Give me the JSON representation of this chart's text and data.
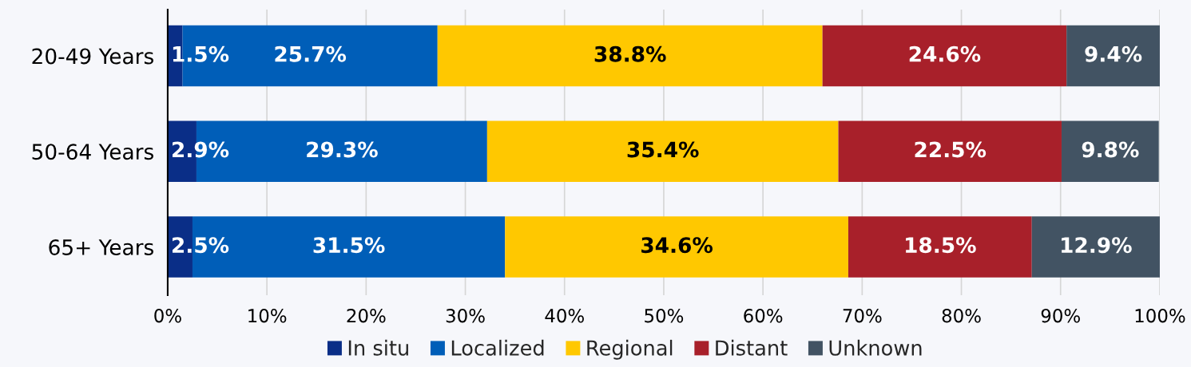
{
  "chart_data": {
    "type": "bar",
    "orientation": "horizontal",
    "stacked": true,
    "categories": [
      "20-49 Years",
      "50-64 Years",
      "65+ Years"
    ],
    "series": [
      {
        "name": "In situ",
        "color": "#0a2e87",
        "values": [
          1.5,
          2.9,
          2.5
        ],
        "value_labels": [
          "1.5%",
          "2.9%",
          "2.5%"
        ]
      },
      {
        "name": "Localized",
        "color": "#005eb8",
        "values": [
          25.7,
          29.3,
          31.5
        ],
        "value_labels": [
          "25.7%",
          "29.3%",
          "31.5%"
        ]
      },
      {
        "name": "Regional",
        "color": "#ffc800",
        "values": [
          38.8,
          35.4,
          34.6
        ],
        "value_labels": [
          "38.8%",
          "35.4%",
          "34.6%"
        ]
      },
      {
        "name": "Distant",
        "color": "#a8202a",
        "values": [
          24.6,
          22.5,
          18.5
        ],
        "value_labels": [
          "24.6%",
          "22.5%",
          "18.5%"
        ]
      },
      {
        "name": "Unknown",
        "color": "#425363",
        "values": [
          9.4,
          9.8,
          12.9
        ],
        "value_labels": [
          "9.4%",
          "9.8%",
          "12.9%"
        ]
      }
    ],
    "xlim": [
      0,
      100
    ],
    "xticks": [
      {
        "value": 0,
        "label": "0%"
      },
      {
        "value": 10,
        "label": "10%"
      },
      {
        "value": 20,
        "label": "20%"
      },
      {
        "value": 30,
        "label": "30%"
      },
      {
        "value": 40,
        "label": "40%"
      },
      {
        "value": 50,
        "label": "50%"
      },
      {
        "value": 60,
        "label": "60%"
      },
      {
        "value": 70,
        "label": "70%"
      },
      {
        "value": 80,
        "label": "80%"
      },
      {
        "value": 90,
        "label": "90%"
      },
      {
        "value": 100,
        "label": "100%"
      }
    ],
    "grid": "x",
    "legend": "bottom"
  }
}
